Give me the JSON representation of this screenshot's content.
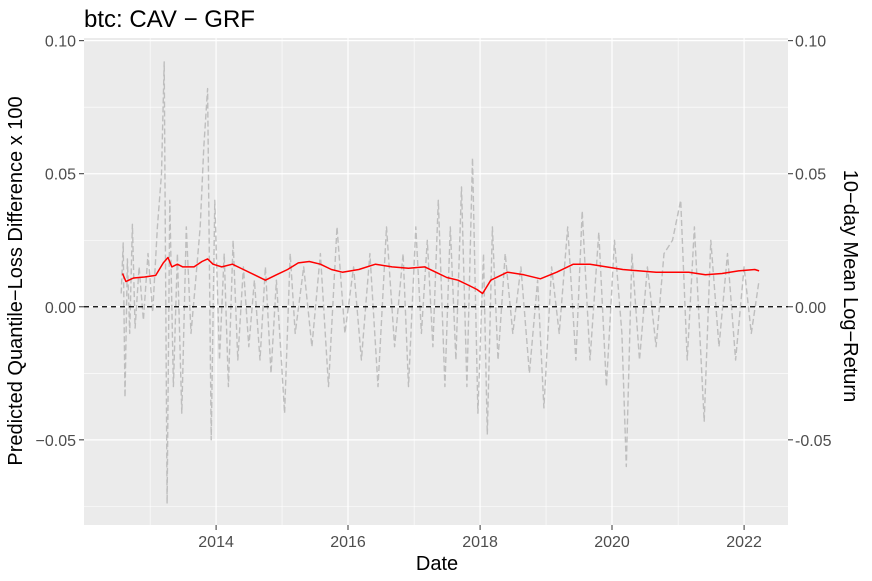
{
  "chart_data": {
    "type": "line",
    "title": "btc: CAV − GRF",
    "xlabel": "Date",
    "ylabel_left": "Predicted Quantile−Loss Difference x 100",
    "ylabel_right": "10−day Mean Log−Return",
    "xlim": [
      "2012-01-01",
      "2022-09-01"
    ],
    "ylim": [
      -0.082,
      0.101
    ],
    "x_ticks": [
      {
        "value": "2014-01-01",
        "label": "2014"
      },
      {
        "value": "2016-01-01",
        "label": "2016"
      },
      {
        "value": "2018-01-01",
        "label": "2018"
      },
      {
        "value": "2020-01-01",
        "label": "2020"
      },
      {
        "value": "2022-01-01",
        "label": "2022"
      }
    ],
    "y_ticks_left": [
      {
        "value": -0.05,
        "label": "−0.05"
      },
      {
        "value": 0.0,
        "label": "0.00"
      },
      {
        "value": 0.05,
        "label": "0.05"
      },
      {
        "value": 0.1,
        "label": "0.10"
      }
    ],
    "y_ticks_right": [
      {
        "value": -0.05,
        "label": "-0.05"
      },
      {
        "value": 0.0,
        "label": "0.00"
      },
      {
        "value": 0.05,
        "label": "0.05"
      },
      {
        "value": 0.1,
        "label": "0.10"
      }
    ],
    "reference_line": {
      "y": 0.0,
      "style": "dashed",
      "color": "#000000"
    },
    "grid": true,
    "legend": "none",
    "series": [
      {
        "color": "#ff0000",
        "style": "solid",
        "points": [
          [
            "2012-08-01",
            0.0125
          ],
          [
            "2012-08-20",
            0.0095
          ],
          [
            "2012-10-01",
            0.0108
          ],
          [
            "2012-12-01",
            0.0112
          ],
          [
            "2013-02-01",
            0.0118
          ],
          [
            "2013-03-15",
            0.0165
          ],
          [
            "2013-04-10",
            0.0185
          ],
          [
            "2013-05-01",
            0.015
          ],
          [
            "2013-06-01",
            0.016
          ],
          [
            "2013-07-01",
            0.015
          ],
          [
            "2013-09-01",
            0.015
          ],
          [
            "2013-10-15",
            0.017
          ],
          [
            "2013-11-15",
            0.018
          ],
          [
            "2013-12-15",
            0.016
          ],
          [
            "2014-02-01",
            0.015
          ],
          [
            "2014-04-01",
            0.016
          ],
          [
            "2014-06-01",
            0.014
          ],
          [
            "2014-08-01",
            0.012
          ],
          [
            "2014-10-01",
            0.01
          ],
          [
            "2014-12-01",
            0.012
          ],
          [
            "2015-02-01",
            0.014
          ],
          [
            "2015-04-01",
            0.0165
          ],
          [
            "2015-06-01",
            0.017
          ],
          [
            "2015-08-01",
            0.016
          ],
          [
            "2015-10-01",
            0.014
          ],
          [
            "2015-12-01",
            0.013
          ],
          [
            "2016-03-01",
            0.014
          ],
          [
            "2016-06-01",
            0.016
          ],
          [
            "2016-09-01",
            0.015
          ],
          [
            "2016-12-01",
            0.0145
          ],
          [
            "2017-03-01",
            0.015
          ],
          [
            "2017-05-01",
            0.013
          ],
          [
            "2017-07-01",
            0.011
          ],
          [
            "2017-09-01",
            0.01
          ],
          [
            "2017-11-01",
            0.008
          ],
          [
            "2017-12-15",
            0.0065
          ],
          [
            "2018-01-15",
            0.005
          ],
          [
            "2018-03-01",
            0.01
          ],
          [
            "2018-06-01",
            0.013
          ],
          [
            "2018-09-01",
            0.012
          ],
          [
            "2018-12-01",
            0.0105
          ],
          [
            "2019-03-01",
            0.013
          ],
          [
            "2019-06-01",
            0.016
          ],
          [
            "2019-09-01",
            0.016
          ],
          [
            "2019-12-01",
            0.015
          ],
          [
            "2020-03-01",
            0.014
          ],
          [
            "2020-06-01",
            0.0135
          ],
          [
            "2020-09-01",
            0.013
          ],
          [
            "2020-12-01",
            0.013
          ],
          [
            "2021-03-01",
            0.013
          ],
          [
            "2021-06-01",
            0.012
          ],
          [
            "2021-09-01",
            0.0125
          ],
          [
            "2021-12-01",
            0.0135
          ],
          [
            "2022-03-01",
            0.014
          ],
          [
            "2022-03-25",
            0.0135
          ]
        ]
      },
      {
        "color": "#bebebe",
        "style": "dashed",
        "points": [
          [
            "2012-07-25",
            0.005
          ],
          [
            "2012-08-05",
            0.024
          ],
          [
            "2012-08-15",
            -0.034
          ],
          [
            "2012-08-28",
            0.018
          ],
          [
            "2012-09-10",
            -0.01
          ],
          [
            "2012-09-25",
            0.031
          ],
          [
            "2012-10-10",
            -0.008
          ],
          [
            "2012-11-01",
            0.015
          ],
          [
            "2012-11-25",
            -0.005
          ],
          [
            "2012-12-20",
            0.02
          ],
          [
            "2013-01-15",
            -0.002
          ],
          [
            "2013-02-10",
            0.03
          ],
          [
            "2013-03-05",
            0.05
          ],
          [
            "2013-03-20",
            0.092
          ],
          [
            "2013-04-05",
            -0.074
          ],
          [
            "2013-04-20",
            0.04
          ],
          [
            "2013-05-10",
            -0.03
          ],
          [
            "2013-06-01",
            0.02
          ],
          [
            "2013-06-25",
            -0.04
          ],
          [
            "2013-07-20",
            0.03
          ],
          [
            "2013-08-15",
            -0.01
          ],
          [
            "2013-09-10",
            0.01
          ],
          [
            "2013-10-05",
            0.03
          ],
          [
            "2013-10-25",
            0.06
          ],
          [
            "2013-11-15",
            0.082
          ],
          [
            "2013-12-05",
            -0.05
          ],
          [
            "2013-12-25",
            0.04
          ],
          [
            "2014-01-20",
            -0.02
          ],
          [
            "2014-02-15",
            0.02
          ],
          [
            "2014-03-10",
            -0.03
          ],
          [
            "2014-04-05",
            0.025
          ],
          [
            "2014-05-01",
            -0.02
          ],
          [
            "2014-06-01",
            0.015
          ],
          [
            "2014-07-01",
            -0.015
          ],
          [
            "2014-08-01",
            0.01
          ],
          [
            "2014-09-01",
            -0.02
          ],
          [
            "2014-10-01",
            0.015
          ],
          [
            "2014-11-01",
            -0.025
          ],
          [
            "2014-12-01",
            0.01
          ],
          [
            "2015-01-15",
            -0.04
          ],
          [
            "2015-02-15",
            0.02
          ],
          [
            "2015-03-15",
            -0.01
          ],
          [
            "2015-05-01",
            0.015
          ],
          [
            "2015-06-15",
            -0.015
          ],
          [
            "2015-08-01",
            0.02
          ],
          [
            "2015-09-15",
            -0.03
          ],
          [
            "2015-11-01",
            0.03
          ],
          [
            "2015-12-15",
            -0.01
          ],
          [
            "2016-02-01",
            0.015
          ],
          [
            "2016-03-15",
            -0.02
          ],
          [
            "2016-05-01",
            0.02
          ],
          [
            "2016-06-15",
            -0.03
          ],
          [
            "2016-08-01",
            0.03
          ],
          [
            "2016-09-15",
            -0.015
          ],
          [
            "2016-11-01",
            0.02
          ],
          [
            "2016-12-01",
            -0.03
          ],
          [
            "2017-01-10",
            0.03
          ],
          [
            "2017-02-10",
            -0.01
          ],
          [
            "2017-03-15",
            0.025
          ],
          [
            "2017-04-15",
            -0.015
          ],
          [
            "2017-05-15",
            0.04
          ],
          [
            "2017-06-20",
            -0.03
          ],
          [
            "2017-07-20",
            0.03
          ],
          [
            "2017-08-20",
            -0.02
          ],
          [
            "2017-09-20",
            0.045
          ],
          [
            "2017-10-20",
            -0.03
          ],
          [
            "2017-11-20",
            0.056
          ],
          [
            "2017-12-20",
            -0.04
          ],
          [
            "2018-01-20",
            0.02
          ],
          [
            "2018-02-10",
            -0.048
          ],
          [
            "2018-03-10",
            0.03
          ],
          [
            "2018-04-10",
            -0.02
          ],
          [
            "2018-05-20",
            0.02
          ],
          [
            "2018-07-01",
            -0.01
          ],
          [
            "2018-08-15",
            0.015
          ],
          [
            "2018-10-01",
            -0.025
          ],
          [
            "2018-11-15",
            0.01
          ],
          [
            "2018-12-20",
            -0.038
          ],
          [
            "2019-02-01",
            0.015
          ],
          [
            "2019-03-15",
            -0.01
          ],
          [
            "2019-05-01",
            0.03
          ],
          [
            "2019-06-15",
            -0.02
          ],
          [
            "2019-07-20",
            0.036
          ],
          [
            "2019-09-01",
            -0.02
          ],
          [
            "2019-10-20",
            0.028
          ],
          [
            "2019-12-01",
            -0.03
          ],
          [
            "2020-01-15",
            0.025
          ],
          [
            "2020-02-25",
            -0.01
          ],
          [
            "2020-03-20",
            -0.06
          ],
          [
            "2020-04-20",
            0.02
          ],
          [
            "2020-06-01",
            -0.02
          ],
          [
            "2020-07-15",
            0.015
          ],
          [
            "2020-09-01",
            -0.015
          ],
          [
            "2020-10-15",
            0.02
          ],
          [
            "2020-12-01",
            0.025
          ],
          [
            "2021-01-15",
            0.04
          ],
          [
            "2021-02-20",
            -0.02
          ],
          [
            "2021-04-01",
            0.03
          ],
          [
            "2021-05-25",
            -0.043
          ],
          [
            "2021-07-01",
            0.025
          ],
          [
            "2021-08-15",
            -0.015
          ],
          [
            "2021-10-01",
            0.02
          ],
          [
            "2021-11-15",
            -0.02
          ],
          [
            "2022-01-01",
            0.015
          ],
          [
            "2022-02-10",
            -0.01
          ],
          [
            "2022-03-25",
            0.01
          ]
        ]
      }
    ]
  }
}
